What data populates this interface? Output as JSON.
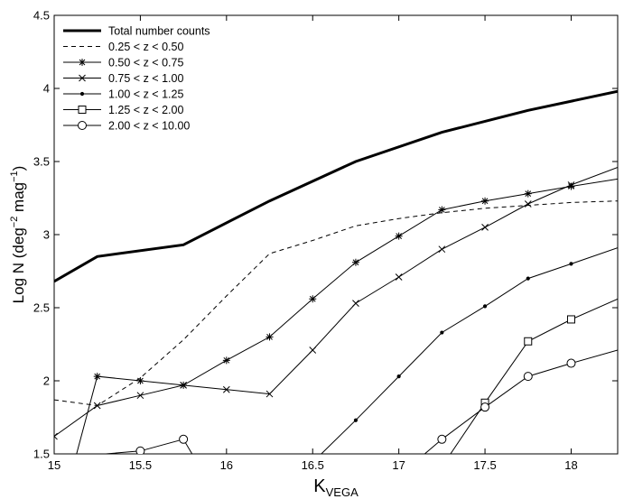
{
  "chart_data": {
    "type": "line",
    "title": "",
    "xlabel": "K",
    "xlabel_sub": "VEGA",
    "ylabel": "Log N (deg",
    "ylabel_sup1": "−2",
    "ylabel_mid": " mag",
    "ylabel_sup2": "−1",
    "ylabel_end": ")",
    "xlim": [
      15,
      18.27
    ],
    "ylim": [
      1.5,
      4.5
    ],
    "x_ticks": [
      15,
      15.5,
      16,
      16.5,
      17,
      17.5,
      18
    ],
    "x_tick_labels": [
      "15",
      "15.5",
      "16",
      "16.5",
      "17",
      "17.5",
      "18"
    ],
    "y_ticks": [
      1.5,
      2,
      2.5,
      3,
      3.5,
      4,
      4.5
    ],
    "y_tick_labels": [
      "1.5",
      "2",
      "2.5",
      "3",
      "3.5",
      "4",
      "4.5"
    ],
    "grid": false,
    "legend_position": "top-left",
    "series": [
      {
        "name": "Total number counts",
        "style": "thick",
        "marker": "none",
        "x": [
          15.0,
          15.25,
          15.75,
          16.25,
          16.75,
          17.25,
          17.75,
          18.27
        ],
        "y": [
          2.68,
          2.85,
          2.93,
          3.23,
          3.5,
          3.7,
          3.85,
          3.98
        ]
      },
      {
        "name": "0.25 < z <  0.50",
        "style": "dashed",
        "marker": "none",
        "x": [
          15.0,
          15.25,
          15.5,
          15.75,
          16.0,
          16.25,
          16.5,
          16.75,
          17.0,
          17.25,
          17.5,
          17.75,
          18.0,
          18.27
        ],
        "y": [
          1.87,
          1.83,
          2.02,
          2.28,
          2.58,
          2.87,
          2.96,
          3.06,
          3.11,
          3.15,
          3.18,
          3.2,
          3.22,
          3.23
        ]
      },
      {
        "name": "0.50 < z <  0.75",
        "style": "solid",
        "marker": "asterisk",
        "x": [
          15.13,
          15.25,
          15.5,
          15.75,
          16.0,
          16.25,
          16.5,
          16.75,
          17.0,
          17.25,
          17.5,
          17.75,
          18.0,
          18.27
        ],
        "y": [
          1.5,
          2.03,
          2.0,
          1.97,
          2.14,
          2.3,
          2.56,
          2.81,
          2.99,
          3.17,
          3.23,
          3.28,
          3.33,
          3.38
        ]
      },
      {
        "name": "0.75 < z <  1.00",
        "style": "solid",
        "marker": "x",
        "x": [
          15.0,
          15.25,
          15.5,
          15.75,
          16.0,
          16.25,
          16.5,
          16.75,
          17.0,
          17.25,
          17.5,
          17.75,
          18.0,
          18.27
        ],
        "y": [
          1.62,
          1.83,
          1.9,
          1.97,
          1.94,
          1.91,
          2.21,
          2.53,
          2.71,
          2.9,
          3.05,
          3.21,
          3.34,
          3.46
        ]
      },
      {
        "name": "1.00 < z <  1.25",
        "style": "solid",
        "marker": "dot",
        "x": [
          16.55,
          16.75,
          17.0,
          17.25,
          17.5,
          17.75,
          18.0,
          18.27
        ],
        "y": [
          1.5,
          1.73,
          2.03,
          2.33,
          2.51,
          2.7,
          2.8,
          2.91
        ]
      },
      {
        "name": "1.25 < z <  2.00",
        "style": "solid",
        "marker": "square",
        "x": [
          17.3,
          17.5,
          17.75,
          18.0,
          18.27
        ],
        "y": [
          1.5,
          1.85,
          2.27,
          2.42,
          2.56
        ]
      },
      {
        "name": "2.00 < z < 10.00",
        "style": "solid",
        "marker": "circle",
        "segments": [
          {
            "x": [
              15.3,
              15.5,
              15.75,
              15.8
            ],
            "y": [
              1.5,
              1.52,
              1.6,
              1.5
            ]
          },
          {
            "x": [
              17.15,
              17.25,
              17.5,
              17.75,
              18.0,
              18.27
            ],
            "y": [
              1.5,
              1.6,
              1.82,
              2.03,
              2.12,
              2.21
            ]
          }
        ]
      }
    ]
  }
}
